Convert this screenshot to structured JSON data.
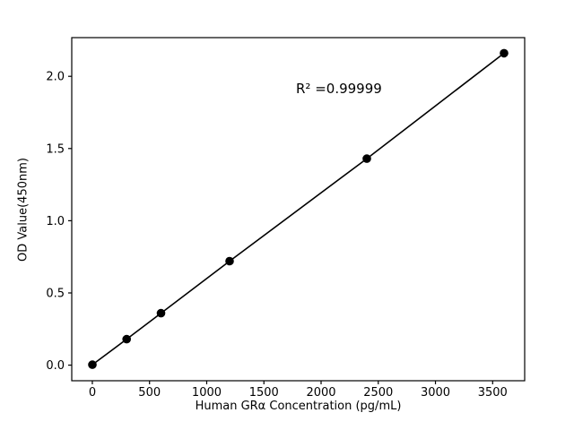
{
  "chart_data": {
    "type": "scatter",
    "title": "",
    "xlabel": "Human GRα Concentration (pg/mL)",
    "ylabel": "OD Value(450nm)",
    "annotation": "R² =0.99999",
    "x": [
      0,
      300,
      600,
      1200,
      2400,
      3600
    ],
    "y": [
      0.003,
      0.18,
      0.36,
      0.72,
      1.43,
      2.16
    ],
    "line": true,
    "xlim": [
      -180,
      3780
    ],
    "ylim": [
      -0.108,
      2.268
    ],
    "xticks": [
      0,
      500,
      1000,
      1500,
      2000,
      2500,
      3000,
      3500
    ],
    "xtick_labels": [
      "0",
      "500",
      "1000",
      "1500",
      "2000",
      "2500",
      "3000",
      "3500"
    ],
    "yticks": [
      0,
      0.5,
      1.0,
      1.5,
      2.0
    ],
    "ytick_labels": [
      "0.0",
      "0.5",
      "1.0",
      "1.5",
      "2.0"
    ],
    "grid": false,
    "legend_position": "none",
    "line_color": "#000000",
    "marker_color": "#000000",
    "axis_color": "#000000",
    "background": "#ffffff",
    "marker_radius": 4.8,
    "line_width": 1.6
  }
}
